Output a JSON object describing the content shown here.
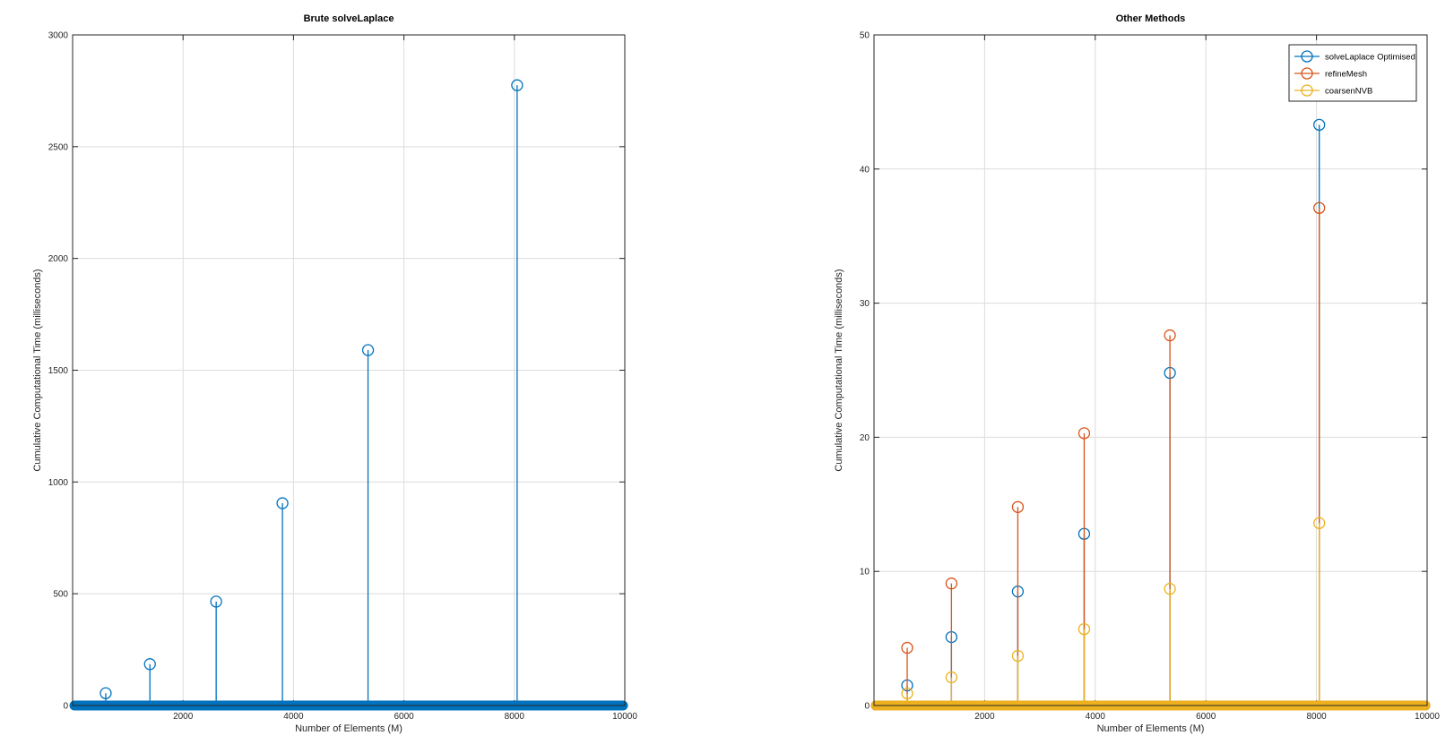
{
  "chart_data": [
    {
      "type": "stem",
      "title": "Brute solveLaplace",
      "xlabel": "Number of Elements (M)",
      "ylabel": "Cumulative Computational Time (milliseconds)",
      "xlim": [
        0,
        10000
      ],
      "ylim": [
        0,
        3000
      ],
      "xticks": [
        2000,
        4000,
        6000,
        8000,
        10000
      ],
      "yticks": [
        0,
        500,
        1000,
        1500,
        2000,
        2500,
        3000
      ],
      "grid": true,
      "legend": null,
      "series": [
        {
          "color": "#0072BD",
          "x": [
            600,
            1400,
            2600,
            3800,
            5350,
            8050
          ],
          "y": [
            55,
            185,
            465,
            905,
            1590,
            2775
          ]
        }
      ]
    },
    {
      "type": "stem",
      "title": "Other Methods",
      "xlabel": "Number of Elements (M)",
      "ylabel": "Cumulative Computational Time (milliseconds)",
      "xlim": [
        0,
        10000
      ],
      "ylim": [
        0,
        50
      ],
      "xticks": [
        2000,
        4000,
        6000,
        8000,
        10000
      ],
      "yticks": [
        0,
        10,
        20,
        30,
        40,
        50
      ],
      "grid": true,
      "legend": "top-right",
      "series": [
        {
          "name": "solveLaplace Optimised",
          "color": "#0072BD",
          "x": [
            600,
            1400,
            2600,
            3800,
            5350,
            8050
          ],
          "y": [
            1.5,
            5.1,
            8.5,
            12.8,
            24.8,
            43.3
          ]
        },
        {
          "name": "refineMesh",
          "color": "#D95319",
          "x": [
            600,
            1400,
            2600,
            3800,
            5350,
            8050
          ],
          "y": [
            4.3,
            9.1,
            14.8,
            20.3,
            27.6,
            37.1
          ]
        },
        {
          "name": "coarsenNVB",
          "color": "#EDB120",
          "x": [
            600,
            1400,
            2600,
            3800,
            5350,
            8050
          ],
          "y": [
            0.9,
            2.1,
            3.7,
            5.7,
            8.7,
            13.6
          ]
        }
      ]
    }
  ]
}
